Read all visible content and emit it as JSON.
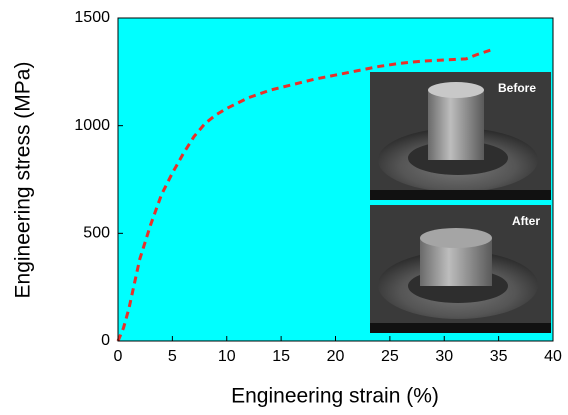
{
  "chart_data": {
    "type": "line",
    "x_label": "Engineering strain (%)",
    "y_label": "Engineering stress (MPa)",
    "x": [
      0,
      0.5,
      1,
      2,
      3,
      4,
      5,
      6,
      7,
      8,
      9,
      10,
      12,
      14,
      16,
      18,
      20,
      22,
      24,
      26,
      28,
      30,
      32,
      33,
      34.5
    ],
    "values": [
      0,
      60,
      150,
      380,
      540,
      680,
      780,
      870,
      950,
      1010,
      1050,
      1080,
      1130,
      1165,
      1190,
      1215,
      1235,
      1255,
      1275,
      1290,
      1300,
      1305,
      1310,
      1330,
      1355
    ],
    "color": "#e8302a",
    "background": "#00ffff",
    "xlim": [
      0,
      40
    ],
    "xticks": [
      0,
      5,
      10,
      15,
      20,
      25,
      30,
      35,
      40
    ],
    "ylim": [
      0,
      1500
    ],
    "yticks": [
      0,
      500,
      1000,
      1500
    ],
    "insets": [
      {
        "label": "Before"
      },
      {
        "label": "After"
      }
    ]
  }
}
